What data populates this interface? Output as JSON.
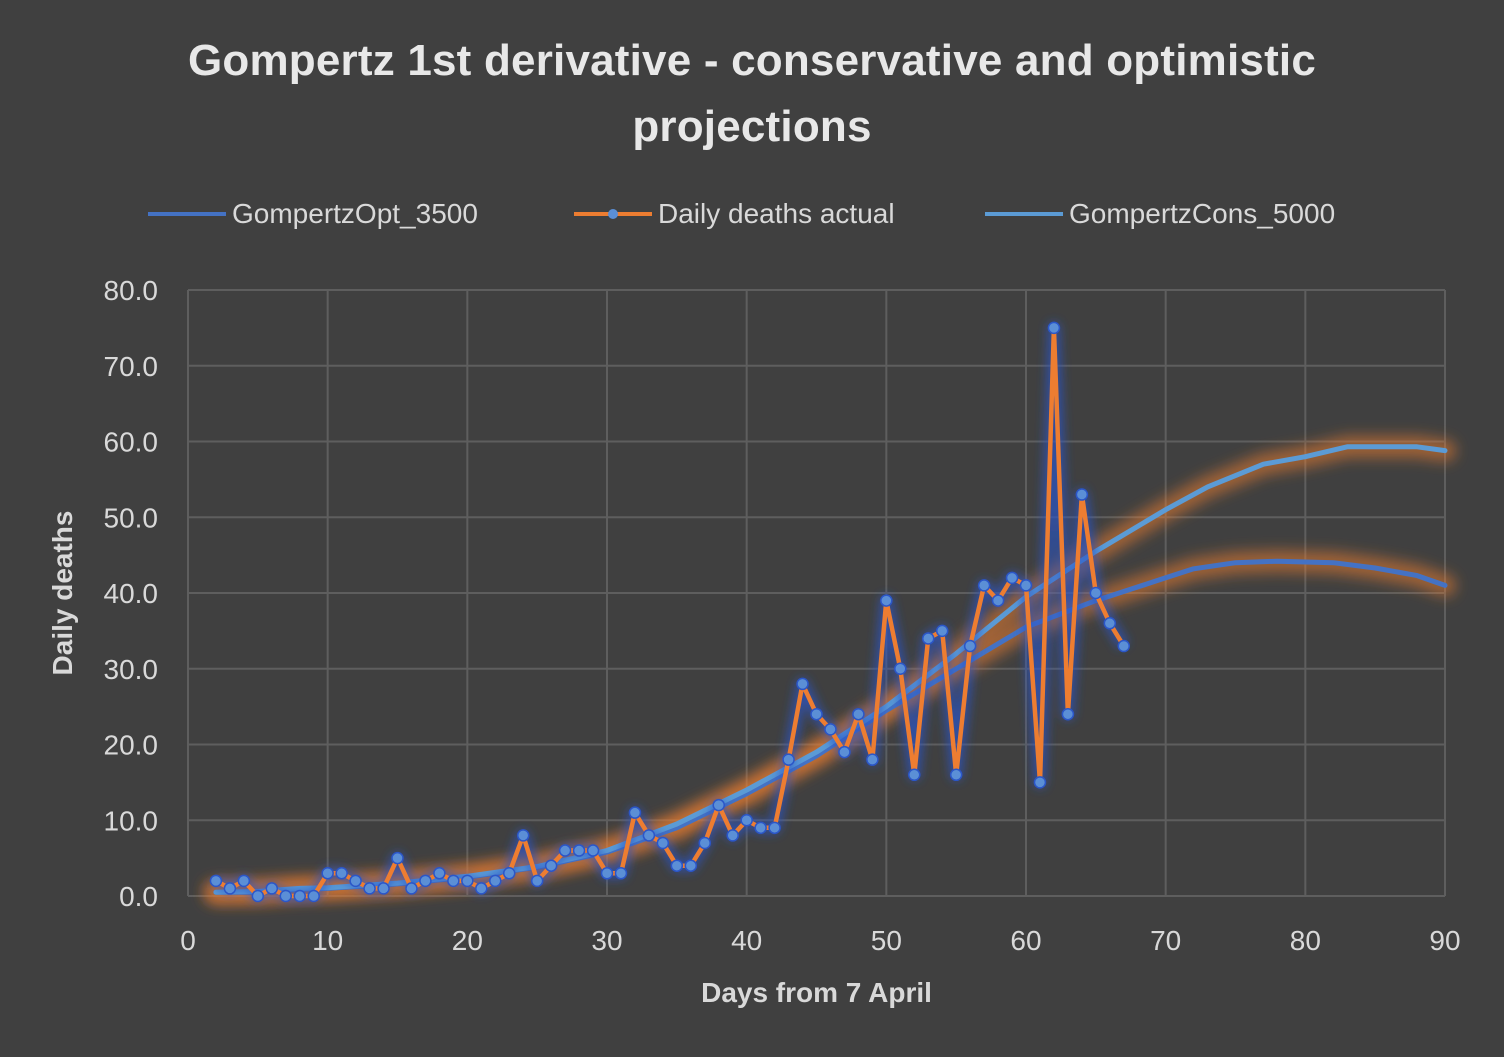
{
  "chart_data": {
    "type": "line",
    "title_lines": [
      "Gompertz 1st derivative - conservative and optimistic",
      "projections"
    ],
    "xlabel": "Days from 7 April",
    "ylabel": "Daily deaths",
    "xlim": [
      0,
      90
    ],
    "ylim": [
      0,
      80
    ],
    "xticks": [
      0,
      10,
      20,
      30,
      40,
      50,
      60,
      70,
      80,
      90
    ],
    "yticks": [
      "0.0",
      "10.0",
      "20.0",
      "30.0",
      "40.0",
      "50.0",
      "60.0",
      "70.0",
      "80.0"
    ],
    "grid": true,
    "legend_position": "top",
    "series": [
      {
        "name": "GompertzOpt_3500",
        "color": "#4472c4",
        "marker": false,
        "points": [
          [
            2,
            0.5
          ],
          [
            5,
            0.5
          ],
          [
            8,
            0.9
          ],
          [
            10,
            1.0
          ],
          [
            15,
            1.6
          ],
          [
            20,
            2.5
          ],
          [
            25,
            3.8
          ],
          [
            30,
            5.8
          ],
          [
            35,
            9.0
          ],
          [
            40,
            13.5
          ],
          [
            45,
            18.5
          ],
          [
            50,
            24.5
          ],
          [
            55,
            30.0
          ],
          [
            60,
            35.5
          ],
          [
            65,
            39.0
          ],
          [
            70,
            42.0
          ],
          [
            72,
            43.2
          ],
          [
            75,
            44.0
          ],
          [
            78,
            44.2
          ],
          [
            82,
            44.0
          ],
          [
            85,
            43.3
          ],
          [
            88,
            42.3
          ],
          [
            90,
            41.0
          ]
        ]
      },
      {
        "name": "Daily deaths actual",
        "color": "#ed7d31",
        "marker": true,
        "points": [
          [
            2,
            2
          ],
          [
            3,
            1
          ],
          [
            4,
            2
          ],
          [
            5,
            0
          ],
          [
            6,
            1
          ],
          [
            7,
            0
          ],
          [
            8,
            0
          ],
          [
            9,
            0
          ],
          [
            10,
            3
          ],
          [
            11,
            3
          ],
          [
            12,
            2
          ],
          [
            13,
            1
          ],
          [
            14,
            1
          ],
          [
            15,
            5
          ],
          [
            16,
            1
          ],
          [
            17,
            2
          ],
          [
            18,
            3
          ],
          [
            19,
            2
          ],
          [
            20,
            2
          ],
          [
            21,
            1
          ],
          [
            22,
            2
          ],
          [
            23,
            3
          ],
          [
            24,
            8
          ],
          [
            25,
            2
          ],
          [
            26,
            4
          ],
          [
            27,
            6
          ],
          [
            28,
            6
          ],
          [
            29,
            6
          ],
          [
            30,
            3
          ],
          [
            31,
            3
          ],
          [
            32,
            11
          ],
          [
            33,
            8
          ],
          [
            34,
            7
          ],
          [
            35,
            4
          ],
          [
            36,
            4
          ],
          [
            37,
            7
          ],
          [
            38,
            12
          ],
          [
            39,
            8
          ],
          [
            40,
            10
          ],
          [
            41,
            9
          ],
          [
            42,
            9
          ],
          [
            43,
            18
          ],
          [
            44,
            28
          ],
          [
            45,
            24
          ],
          [
            46,
            22
          ],
          [
            47,
            19
          ],
          [
            48,
            24
          ],
          [
            49,
            18
          ],
          [
            50,
            39
          ],
          [
            51,
            30
          ],
          [
            52,
            16
          ],
          [
            53,
            34
          ],
          [
            54,
            35
          ],
          [
            55,
            16
          ],
          [
            56,
            33
          ],
          [
            57,
            41
          ],
          [
            58,
            39
          ],
          [
            59,
            42
          ],
          [
            60,
            41
          ],
          [
            61,
            15
          ],
          [
            62,
            75
          ],
          [
            63,
            24
          ],
          [
            64,
            53
          ],
          [
            65,
            40
          ],
          [
            66,
            36
          ],
          [
            67,
            33
          ]
        ]
      },
      {
        "name": "GompertzCons_5000",
        "color": "#5b9bd5",
        "marker": false,
        "points": [
          [
            2,
            0.5
          ],
          [
            5,
            0.6
          ],
          [
            8,
            1.0
          ],
          [
            10,
            1.1
          ],
          [
            15,
            1.7
          ],
          [
            20,
            2.6
          ],
          [
            25,
            3.9
          ],
          [
            30,
            6.0
          ],
          [
            35,
            9.5
          ],
          [
            40,
            14.0
          ],
          [
            45,
            19.0
          ],
          [
            50,
            25.0
          ],
          [
            55,
            32.0
          ],
          [
            60,
            39.5
          ],
          [
            65,
            45.5
          ],
          [
            70,
            51.0
          ],
          [
            73,
            54.0
          ],
          [
            77,
            57.0
          ],
          [
            80,
            58.0
          ],
          [
            83,
            59.3
          ],
          [
            85,
            59.3
          ],
          [
            88,
            59.3
          ],
          [
            90,
            58.8
          ]
        ]
      }
    ]
  }
}
